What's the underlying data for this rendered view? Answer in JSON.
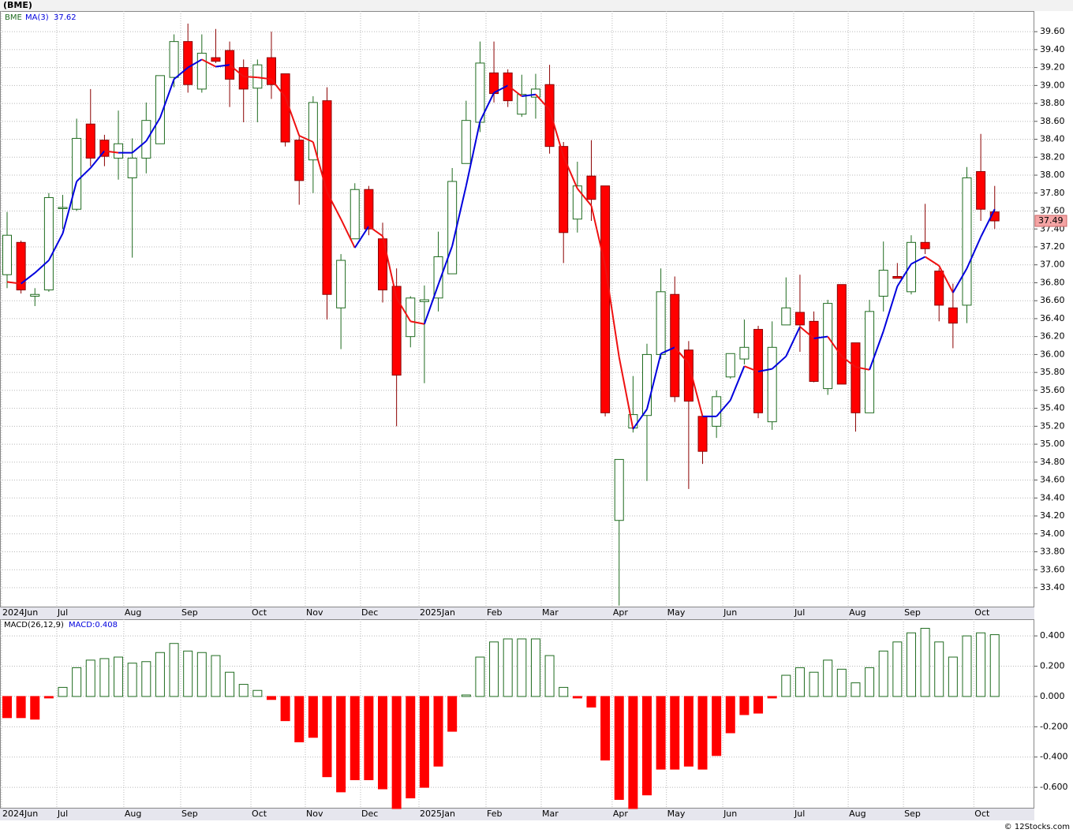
{
  "chart_data": [
    {
      "type": "candlestick",
      "title": "(BME)",
      "symbol": "BME",
      "ma_name": "MA(3)",
      "xlim": [
        -0.51,
        73.85
      ],
      "xticks": [
        {
          "value": -0.4,
          "label": "2024Jun"
        },
        {
          "value": 3.57,
          "label": "Jul"
        },
        {
          "value": 8.39,
          "label": "Aug"
        },
        {
          "value": 12.48,
          "label": "Sep"
        },
        {
          "value": 17.53,
          "label": "Oct"
        },
        {
          "value": 21.44,
          "label": "Nov"
        },
        {
          "value": 25.41,
          "label": "Dec"
        },
        {
          "value": 29.61,
          "label": "2025Jan"
        },
        {
          "value": 34.43,
          "label": "Feb"
        },
        {
          "value": 38.4,
          "label": "Mar"
        },
        {
          "value": 43.5,
          "label": "Apr"
        },
        {
          "value": 47.4,
          "label": "May"
        },
        {
          "value": 51.45,
          "label": "Jun"
        },
        {
          "value": 56.55,
          "label": "Jul"
        },
        {
          "value": 60.47,
          "label": "Aug"
        },
        {
          "value": 64.44,
          "label": "Sep"
        },
        {
          "value": 69.5,
          "label": "Oct"
        }
      ],
      "ylim": [
        33.18,
        39.83
      ],
      "yticks": [
        {
          "value": 33.4,
          "label": "33.40"
        },
        {
          "value": 33.6,
          "label": "33.60"
        },
        {
          "value": 33.8,
          "label": "33.80"
        },
        {
          "value": 34.0,
          "label": "34.00"
        },
        {
          "value": 34.2,
          "label": "34.20"
        },
        {
          "value": 34.4,
          "label": "34.40"
        },
        {
          "value": 34.6,
          "label": "34.60"
        },
        {
          "value": 34.8,
          "label": "34.80"
        },
        {
          "value": 35.0,
          "label": "35.00"
        },
        {
          "value": 35.2,
          "label": "35.20"
        },
        {
          "value": 35.4,
          "label": "35.40"
        },
        {
          "value": 35.6,
          "label": "35.60"
        },
        {
          "value": 35.8,
          "label": "35.80"
        },
        {
          "value": 36.0,
          "label": "36.00"
        },
        {
          "value": 36.2,
          "label": "36.20"
        },
        {
          "value": 36.4,
          "label": "36.40"
        },
        {
          "value": 36.6,
          "label": "36.60"
        },
        {
          "value": 36.8,
          "label": "36.80"
        },
        {
          "value": 37.0,
          "label": "37.00"
        },
        {
          "value": 37.2,
          "label": "37.20"
        },
        {
          "value": 37.4,
          "label": "37.40"
        },
        {
          "value": 37.6,
          "label": "37.60"
        },
        {
          "value": 37.8,
          "label": "37.80"
        },
        {
          "value": 38.0,
          "label": "38.00"
        },
        {
          "value": 38.2,
          "label": "38.20"
        },
        {
          "value": 38.4,
          "label": "38.40"
        },
        {
          "value": 38.6,
          "label": "38.60"
        },
        {
          "value": 38.8,
          "label": "38.80"
        },
        {
          "value": 39.0,
          "label": "39.00"
        },
        {
          "value": 39.2,
          "label": "39.20"
        },
        {
          "value": 39.4,
          "label": "39.40"
        },
        {
          "value": 39.6,
          "label": "39.60"
        }
      ],
      "grid": true,
      "up_color": "#1f6b1f",
      "down_color": "#ff0000",
      "ma_up_color": "#0000dd",
      "ma_down_color": "#ee1111",
      "open": [
        36.89,
        37.25,
        36.65,
        36.72,
        37.63,
        37.62,
        38.57,
        38.39,
        38.19,
        37.97,
        38.19,
        38.35,
        39.09,
        39.49,
        38.96,
        39.31,
        39.39,
        39.2,
        38.97,
        39.31,
        39.13,
        38.39,
        38.17,
        38.83,
        36.52,
        37.29,
        37.84,
        37.29,
        36.76,
        36.2,
        36.59,
        36.63,
        36.9,
        38.13,
        38.59,
        39.14,
        39.14,
        38.68,
        38.87,
        39.01,
        38.32,
        37.51,
        37.99,
        37.88,
        34.15,
        35.18,
        35.32,
        36.0,
        36.67,
        36.05,
        35.31,
        35.2,
        35.75,
        35.95,
        36.28,
        35.25,
        36.33,
        36.47,
        36.37,
        35.62,
        36.78,
        36.13,
        35.35,
        36.65,
        36.87,
        36.7,
        37.25,
        36.93,
        36.52,
        36.55,
        38.04,
        37.59
      ],
      "high": [
        37.59,
        37.27,
        36.74,
        37.8,
        37.78,
        38.63,
        38.96,
        38.45,
        38.72,
        38.41,
        38.81,
        39.11,
        39.57,
        39.69,
        39.57,
        39.63,
        39.49,
        39.29,
        39.29,
        39.6,
        39.13,
        38.45,
        38.88,
        38.98,
        37.12,
        37.91,
        37.88,
        37.47,
        36.96,
        36.65,
        36.77,
        37.37,
        38.08,
        38.83,
        39.49,
        39.49,
        39.18,
        39.12,
        39.13,
        39.23,
        38.37,
        38.15,
        38.39,
        37.88,
        34.83,
        35.76,
        36.12,
        36.96,
        36.87,
        36.15,
        35.31,
        35.6,
        36.01,
        36.39,
        36.32,
        36.37,
        36.86,
        36.89,
        36.48,
        36.61,
        36.78,
        36.13,
        36.61,
        37.26,
        37.02,
        37.33,
        37.68,
        36.96,
        36.79,
        38.09,
        38.46,
        37.88
      ],
      "low": [
        36.74,
        36.68,
        36.54,
        36.7,
        37.4,
        37.6,
        38.1,
        38.1,
        37.95,
        37.08,
        38.02,
        38.35,
        38.98,
        38.92,
        38.92,
        39.25,
        38.76,
        38.59,
        38.59,
        38.85,
        38.32,
        37.67,
        37.8,
        36.39,
        36.06,
        37.29,
        37.33,
        36.58,
        35.2,
        36.08,
        35.68,
        36.48,
        36.9,
        38.13,
        38.48,
        38.81,
        38.76,
        38.65,
        38.63,
        38.24,
        37.02,
        37.36,
        37.49,
        35.31,
        33.2,
        35.13,
        34.59,
        35.95,
        35.47,
        34.5,
        34.78,
        35.07,
        35.73,
        35.89,
        35.29,
        35.16,
        36.33,
        36.03,
        35.69,
        35.55,
        35.67,
        35.14,
        35.35,
        36.48,
        36.85,
        36.67,
        37.12,
        36.37,
        36.07,
        36.35,
        37.49,
        37.4
      ],
      "close": [
        37.33,
        36.72,
        36.67,
        37.75,
        37.64,
        38.41,
        38.19,
        38.21,
        38.35,
        38.19,
        38.61,
        39.11,
        39.49,
        39.01,
        39.36,
        39.27,
        39.07,
        38.96,
        39.23,
        39.01,
        38.37,
        37.94,
        38.81,
        36.67,
        37.05,
        37.84,
        37.4,
        36.72,
        35.77,
        36.63,
        36.61,
        37.09,
        37.93,
        38.61,
        39.25,
        38.91,
        38.83,
        38.9,
        38.96,
        38.32,
        37.36,
        37.88,
        37.73,
        35.35,
        34.83,
        35.33,
        36.0,
        36.7,
        35.53,
        35.48,
        34.92,
        35.53,
        36.01,
        36.08,
        35.35,
        36.08,
        36.52,
        36.33,
        35.7,
        36.57,
        35.67,
        35.35,
        36.48,
        36.94,
        36.85,
        37.25,
        37.18,
        36.55,
        36.35,
        37.97,
        37.62,
        37.49
      ],
      "ma": [
        36.81,
        36.79,
        36.91,
        37.05,
        37.35,
        37.93,
        38.08,
        38.27,
        38.25,
        38.25,
        38.38,
        38.64,
        39.07,
        39.2,
        39.29,
        39.21,
        39.23,
        39.1,
        39.09,
        39.07,
        38.87,
        38.44,
        38.37,
        37.81,
        37.51,
        37.19,
        37.43,
        37.32,
        36.63,
        36.37,
        36.34,
        36.78,
        37.21,
        37.88,
        38.6,
        38.92,
        39.0,
        38.88,
        38.9,
        38.73,
        38.21,
        37.85,
        37.66,
        36.99,
        35.97,
        35.17,
        35.39,
        36.01,
        36.08,
        35.9,
        35.31,
        35.31,
        35.49,
        35.87,
        35.81,
        35.84,
        35.98,
        36.31,
        36.18,
        36.2,
        35.98,
        35.86,
        35.83,
        36.26,
        36.76,
        37.01,
        37.09,
        36.99,
        36.69,
        36.96,
        37.31,
        37.62
      ]
    },
    {
      "type": "histogram-macd",
      "title": "MACD(26,12,9)",
      "legend_label": "MACD:0.408",
      "ylim": [
        -0.74,
        0.51
      ],
      "yticks": [
        {
          "value": -0.6,
          "label": "-0.600"
        },
        {
          "value": -0.4,
          "label": "-0.400"
        },
        {
          "value": -0.2,
          "label": "-0.200"
        },
        {
          "value": 0,
          "label": "0.000"
        },
        {
          "value": 0.2,
          "label": "0.200"
        },
        {
          "value": 0.4,
          "label": "0.400"
        }
      ],
      "up_color": "#1f6b1f",
      "down_color": "#ff0000",
      "values": [
        -0.14,
        -0.14,
        -0.15,
        -0.01,
        0.06,
        0.19,
        0.24,
        0.25,
        0.26,
        0.22,
        0.23,
        0.29,
        0.35,
        0.3,
        0.29,
        0.27,
        0.16,
        0.08,
        0.04,
        -0.02,
        -0.16,
        -0.3,
        -0.27,
        -0.53,
        -0.63,
        -0.55,
        -0.55,
        -0.61,
        -0.74,
        -0.67,
        -0.6,
        -0.46,
        -0.23,
        0.01,
        0.26,
        0.36,
        0.38,
        0.38,
        0.38,
        0.27,
        0.06,
        -0.01,
        -0.07,
        -0.42,
        -0.68,
        -0.74,
        -0.65,
        -0.48,
        -0.48,
        -0.46,
        -0.48,
        -0.39,
        -0.24,
        -0.12,
        -0.11,
        -0.01,
        0.14,
        0.19,
        0.16,
        0.24,
        0.18,
        0.09,
        0.19,
        0.3,
        0.36,
        0.42,
        0.45,
        0.36,
        0.26,
        0.4,
        0.42,
        0.408
      ]
    }
  ],
  "footer": "© 12Stocks.com"
}
